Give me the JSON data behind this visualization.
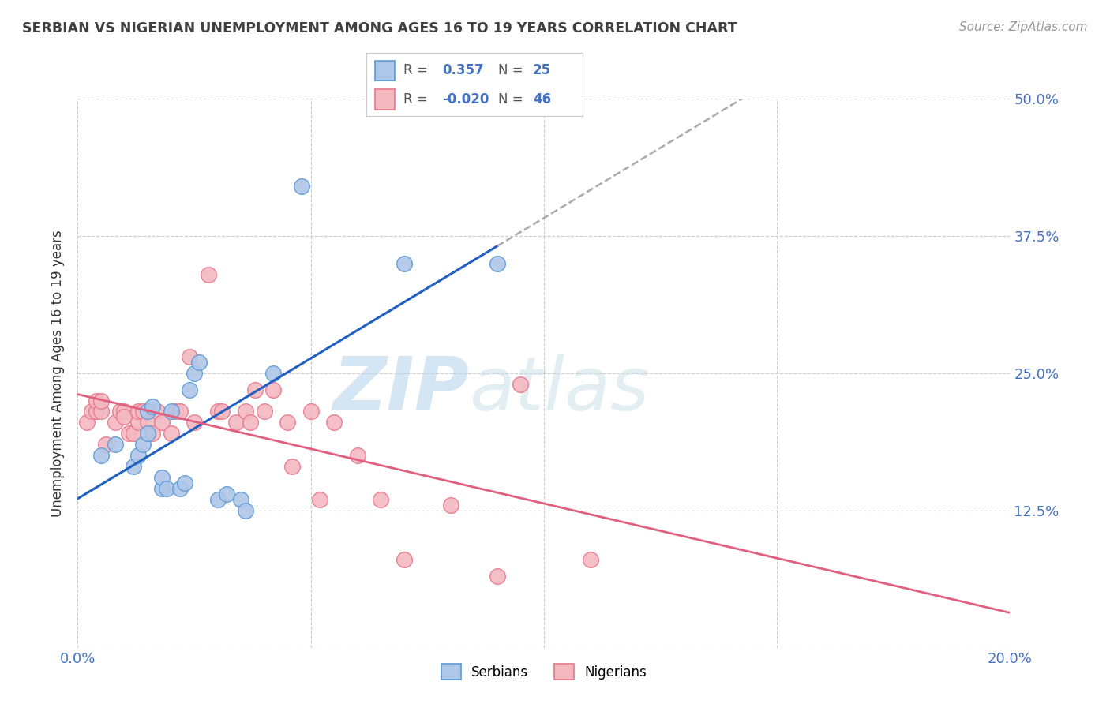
{
  "title": "SERBIAN VS NIGERIAN UNEMPLOYMENT AMONG AGES 16 TO 19 YEARS CORRELATION CHART",
  "source": "Source: ZipAtlas.com",
  "ylabel": "Unemployment Among Ages 16 to 19 years",
  "xlim": [
    0.0,
    0.2
  ],
  "ylim": [
    0.0,
    0.5
  ],
  "xticks": [
    0.0,
    0.05,
    0.1,
    0.15,
    0.2
  ],
  "xticklabels": [
    "0.0%",
    "",
    "",
    "",
    "20.0%"
  ],
  "yticks_left": [
    0.0,
    0.125,
    0.25,
    0.375,
    0.5
  ],
  "yticks_right": [
    0.0,
    0.125,
    0.25,
    0.375,
    0.5
  ],
  "yticklabels_right": [
    "",
    "12.5%",
    "25.0%",
    "37.5%",
    "50.0%"
  ],
  "serbian_color": "#aec6e8",
  "nigerian_color": "#f4b8c1",
  "serbian_edge": "#5b9bd5",
  "nigerian_edge": "#e8788a",
  "trend_serbian_color": "#2060c0",
  "trend_nigerian_color": "#e06080",
  "trend_dashed_color": "#aaaaaa",
  "watermark_zip": "ZIP",
  "watermark_atlas": "atlas",
  "legend_R_serbian": "0.357",
  "legend_N_serbian": "25",
  "legend_R_nigerian": "-0.020",
  "legend_N_nigerian": "46",
  "serbian_x": [
    0.005,
    0.008,
    0.012,
    0.013,
    0.014,
    0.015,
    0.015,
    0.016,
    0.018,
    0.018,
    0.019,
    0.02,
    0.022,
    0.023,
    0.024,
    0.025,
    0.026,
    0.03,
    0.032,
    0.035,
    0.036,
    0.042,
    0.048,
    0.07,
    0.09
  ],
  "serbian_y": [
    0.175,
    0.185,
    0.165,
    0.175,
    0.185,
    0.195,
    0.215,
    0.22,
    0.145,
    0.155,
    0.145,
    0.215,
    0.145,
    0.15,
    0.235,
    0.25,
    0.26,
    0.135,
    0.14,
    0.135,
    0.125,
    0.25,
    0.42,
    0.35,
    0.35
  ],
  "nigerian_x": [
    0.002,
    0.003,
    0.004,
    0.004,
    0.005,
    0.005,
    0.006,
    0.008,
    0.009,
    0.01,
    0.01,
    0.011,
    0.012,
    0.013,
    0.013,
    0.014,
    0.015,
    0.016,
    0.017,
    0.018,
    0.02,
    0.021,
    0.022,
    0.024,
    0.025,
    0.028,
    0.03,
    0.031,
    0.034,
    0.036,
    0.037,
    0.038,
    0.04,
    0.042,
    0.045,
    0.046,
    0.05,
    0.052,
    0.055,
    0.06,
    0.065,
    0.07,
    0.08,
    0.09,
    0.095,
    0.11
  ],
  "nigerian_y": [
    0.205,
    0.215,
    0.215,
    0.225,
    0.215,
    0.225,
    0.185,
    0.205,
    0.215,
    0.215,
    0.21,
    0.195,
    0.195,
    0.205,
    0.215,
    0.215,
    0.205,
    0.195,
    0.215,
    0.205,
    0.195,
    0.215,
    0.215,
    0.265,
    0.205,
    0.34,
    0.215,
    0.215,
    0.205,
    0.215,
    0.205,
    0.235,
    0.215,
    0.235,
    0.205,
    0.165,
    0.215,
    0.135,
    0.205,
    0.175,
    0.135,
    0.08,
    0.13,
    0.065,
    0.24,
    0.08
  ],
  "background_color": "#ffffff",
  "grid_color": "#cccccc"
}
